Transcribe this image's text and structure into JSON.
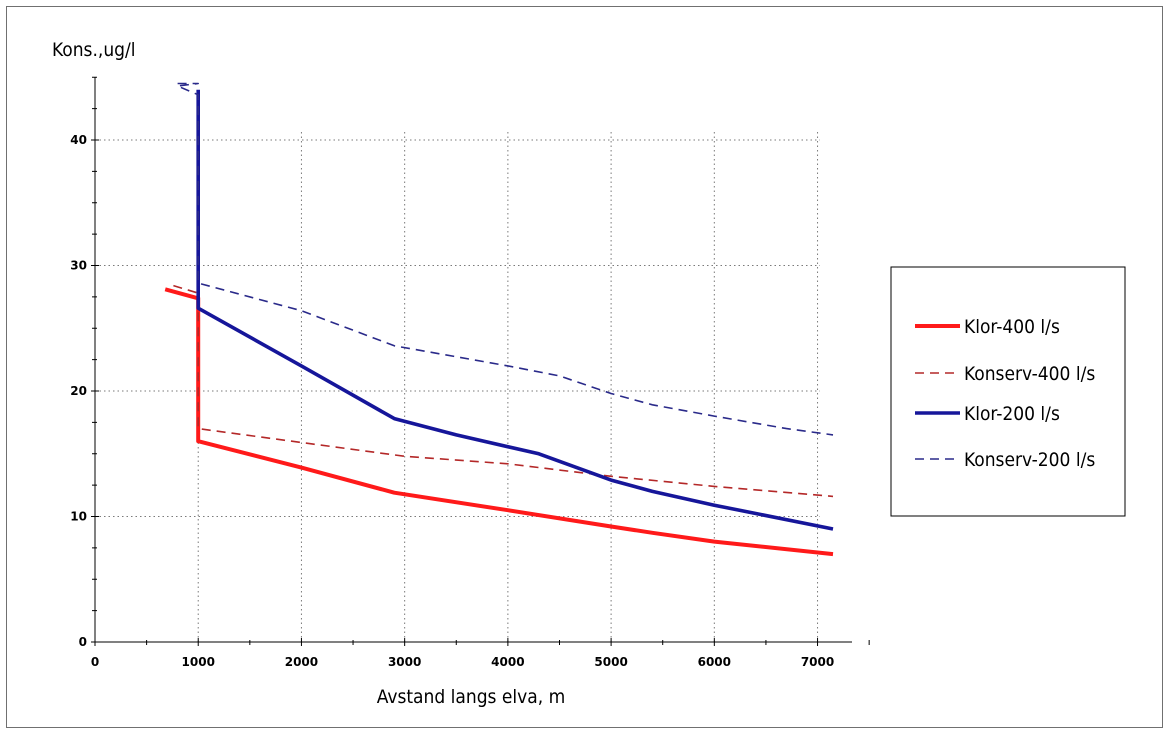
{
  "chart_data": {
    "type": "line",
    "title": "",
    "xlabel": "Avstand langs elva, m",
    "ylabel": "Kons.,ug/l",
    "xlim": [
      0,
      7500
    ],
    "ylim": [
      0,
      45
    ],
    "x_ticks": [
      0,
      1000,
      2000,
      3000,
      4000,
      5000,
      6000,
      7000
    ],
    "y_ticks": [
      0,
      10,
      20,
      30,
      40
    ],
    "grid": true,
    "legend_position": "right",
    "series": [
      {
        "name": "Klor-400  l/s",
        "color": "#ff1a1a",
        "style": "solid",
        "width": 4,
        "points": [
          [
            680,
            28.1
          ],
          [
            990,
            27.4
          ],
          [
            1000,
            27.4
          ],
          [
            1000,
            16.0
          ],
          [
            2000,
            13.9
          ],
          [
            2900,
            11.9
          ],
          [
            4000,
            10.5
          ],
          [
            5000,
            9.2
          ],
          [
            5400,
            8.7
          ],
          [
            6000,
            8.0
          ],
          [
            7150,
            7.0
          ]
        ]
      },
      {
        "name": "Konserv-400 l/s",
        "color": "#b42828",
        "style": "dashed",
        "width": 1.6,
        "points": [
          [
            760,
            28.4
          ],
          [
            1000,
            27.8
          ],
          [
            1000,
            17.0
          ],
          [
            2000,
            15.9
          ],
          [
            3000,
            14.8
          ],
          [
            4000,
            14.2
          ],
          [
            5000,
            13.2
          ],
          [
            6000,
            12.4
          ],
          [
            7150,
            11.6
          ]
        ]
      },
      {
        "name": "Klor-200  l/s",
        "color": "#16169a",
        "style": "solid",
        "width": 3.6,
        "points": [
          [
            1000,
            44.0
          ],
          [
            1000,
            26.6
          ],
          [
            2000,
            22.0
          ],
          [
            2900,
            17.8
          ],
          [
            3500,
            16.5
          ],
          [
            4300,
            15.0
          ],
          [
            5000,
            12.9
          ],
          [
            5400,
            12.0
          ],
          [
            6000,
            10.9
          ],
          [
            7150,
            9.0
          ]
        ]
      },
      {
        "name": "Konserv-200 l/s",
        "color": "#2a2a8a",
        "style": "dashed",
        "width": 1.6,
        "points": [
          [
            800,
            44.5
          ],
          [
            1000,
            44.5
          ],
          [
            800,
            44.3
          ],
          [
            1000,
            43.6
          ],
          [
            1000,
            28.6
          ],
          [
            2000,
            26.4
          ],
          [
            2900,
            23.6
          ],
          [
            4000,
            22.0
          ],
          [
            4500,
            21.2
          ],
          [
            5000,
            19.8
          ],
          [
            5400,
            18.9
          ],
          [
            6000,
            18.0
          ],
          [
            6700,
            17.0
          ],
          [
            7150,
            16.5
          ]
        ]
      }
    ]
  }
}
